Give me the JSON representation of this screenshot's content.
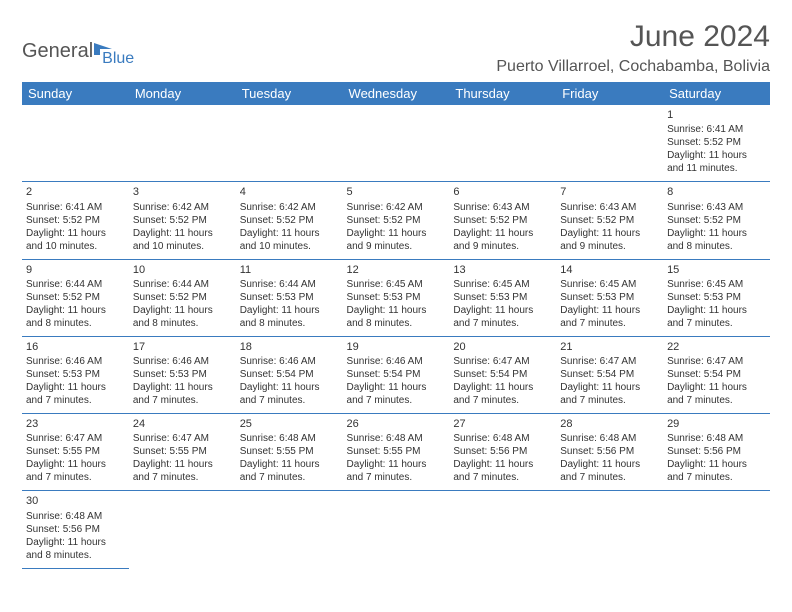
{
  "logo": {
    "part1": "General",
    "part2": "Blue"
  },
  "title": "June 2024",
  "location": "Puerto Villarroel, Cochabamba, Bolivia",
  "colors": {
    "header_bg": "#3a7bbf",
    "header_text": "#ffffff",
    "text": "#333333",
    "divider": "#3a7bbf",
    "logo_gray": "#555555",
    "logo_blue": "#3a7bbf"
  },
  "weekdays": [
    "Sunday",
    "Monday",
    "Tuesday",
    "Wednesday",
    "Thursday",
    "Friday",
    "Saturday"
  ],
  "weeks": [
    [
      null,
      null,
      null,
      null,
      null,
      null,
      {
        "n": "1",
        "sunrise": "Sunrise: 6:41 AM",
        "sunset": "Sunset: 5:52 PM",
        "daylight": "Daylight: 11 hours and 11 minutes."
      }
    ],
    [
      {
        "n": "2",
        "sunrise": "Sunrise: 6:41 AM",
        "sunset": "Sunset: 5:52 PM",
        "daylight": "Daylight: 11 hours and 10 minutes."
      },
      {
        "n": "3",
        "sunrise": "Sunrise: 6:42 AM",
        "sunset": "Sunset: 5:52 PM",
        "daylight": "Daylight: 11 hours and 10 minutes."
      },
      {
        "n": "4",
        "sunrise": "Sunrise: 6:42 AM",
        "sunset": "Sunset: 5:52 PM",
        "daylight": "Daylight: 11 hours and 10 minutes."
      },
      {
        "n": "5",
        "sunrise": "Sunrise: 6:42 AM",
        "sunset": "Sunset: 5:52 PM",
        "daylight": "Daylight: 11 hours and 9 minutes."
      },
      {
        "n": "6",
        "sunrise": "Sunrise: 6:43 AM",
        "sunset": "Sunset: 5:52 PM",
        "daylight": "Daylight: 11 hours and 9 minutes."
      },
      {
        "n": "7",
        "sunrise": "Sunrise: 6:43 AM",
        "sunset": "Sunset: 5:52 PM",
        "daylight": "Daylight: 11 hours and 9 minutes."
      },
      {
        "n": "8",
        "sunrise": "Sunrise: 6:43 AM",
        "sunset": "Sunset: 5:52 PM",
        "daylight": "Daylight: 11 hours and 8 minutes."
      }
    ],
    [
      {
        "n": "9",
        "sunrise": "Sunrise: 6:44 AM",
        "sunset": "Sunset: 5:52 PM",
        "daylight": "Daylight: 11 hours and 8 minutes."
      },
      {
        "n": "10",
        "sunrise": "Sunrise: 6:44 AM",
        "sunset": "Sunset: 5:52 PM",
        "daylight": "Daylight: 11 hours and 8 minutes."
      },
      {
        "n": "11",
        "sunrise": "Sunrise: 6:44 AM",
        "sunset": "Sunset: 5:53 PM",
        "daylight": "Daylight: 11 hours and 8 minutes."
      },
      {
        "n": "12",
        "sunrise": "Sunrise: 6:45 AM",
        "sunset": "Sunset: 5:53 PM",
        "daylight": "Daylight: 11 hours and 8 minutes."
      },
      {
        "n": "13",
        "sunrise": "Sunrise: 6:45 AM",
        "sunset": "Sunset: 5:53 PM",
        "daylight": "Daylight: 11 hours and 7 minutes."
      },
      {
        "n": "14",
        "sunrise": "Sunrise: 6:45 AM",
        "sunset": "Sunset: 5:53 PM",
        "daylight": "Daylight: 11 hours and 7 minutes."
      },
      {
        "n": "15",
        "sunrise": "Sunrise: 6:45 AM",
        "sunset": "Sunset: 5:53 PM",
        "daylight": "Daylight: 11 hours and 7 minutes."
      }
    ],
    [
      {
        "n": "16",
        "sunrise": "Sunrise: 6:46 AM",
        "sunset": "Sunset: 5:53 PM",
        "daylight": "Daylight: 11 hours and 7 minutes."
      },
      {
        "n": "17",
        "sunrise": "Sunrise: 6:46 AM",
        "sunset": "Sunset: 5:53 PM",
        "daylight": "Daylight: 11 hours and 7 minutes."
      },
      {
        "n": "18",
        "sunrise": "Sunrise: 6:46 AM",
        "sunset": "Sunset: 5:54 PM",
        "daylight": "Daylight: 11 hours and 7 minutes."
      },
      {
        "n": "19",
        "sunrise": "Sunrise: 6:46 AM",
        "sunset": "Sunset: 5:54 PM",
        "daylight": "Daylight: 11 hours and 7 minutes."
      },
      {
        "n": "20",
        "sunrise": "Sunrise: 6:47 AM",
        "sunset": "Sunset: 5:54 PM",
        "daylight": "Daylight: 11 hours and 7 minutes."
      },
      {
        "n": "21",
        "sunrise": "Sunrise: 6:47 AM",
        "sunset": "Sunset: 5:54 PM",
        "daylight": "Daylight: 11 hours and 7 minutes."
      },
      {
        "n": "22",
        "sunrise": "Sunrise: 6:47 AM",
        "sunset": "Sunset: 5:54 PM",
        "daylight": "Daylight: 11 hours and 7 minutes."
      }
    ],
    [
      {
        "n": "23",
        "sunrise": "Sunrise: 6:47 AM",
        "sunset": "Sunset: 5:55 PM",
        "daylight": "Daylight: 11 hours and 7 minutes."
      },
      {
        "n": "24",
        "sunrise": "Sunrise: 6:47 AM",
        "sunset": "Sunset: 5:55 PM",
        "daylight": "Daylight: 11 hours and 7 minutes."
      },
      {
        "n": "25",
        "sunrise": "Sunrise: 6:48 AM",
        "sunset": "Sunset: 5:55 PM",
        "daylight": "Daylight: 11 hours and 7 minutes."
      },
      {
        "n": "26",
        "sunrise": "Sunrise: 6:48 AM",
        "sunset": "Sunset: 5:55 PM",
        "daylight": "Daylight: 11 hours and 7 minutes."
      },
      {
        "n": "27",
        "sunrise": "Sunrise: 6:48 AM",
        "sunset": "Sunset: 5:56 PM",
        "daylight": "Daylight: 11 hours and 7 minutes."
      },
      {
        "n": "28",
        "sunrise": "Sunrise: 6:48 AM",
        "sunset": "Sunset: 5:56 PM",
        "daylight": "Daylight: 11 hours and 7 minutes."
      },
      {
        "n": "29",
        "sunrise": "Sunrise: 6:48 AM",
        "sunset": "Sunset: 5:56 PM",
        "daylight": "Daylight: 11 hours and 7 minutes."
      }
    ],
    [
      {
        "n": "30",
        "sunrise": "Sunrise: 6:48 AM",
        "sunset": "Sunset: 5:56 PM",
        "daylight": "Daylight: 11 hours and 8 minutes."
      },
      null,
      null,
      null,
      null,
      null,
      null
    ]
  ]
}
